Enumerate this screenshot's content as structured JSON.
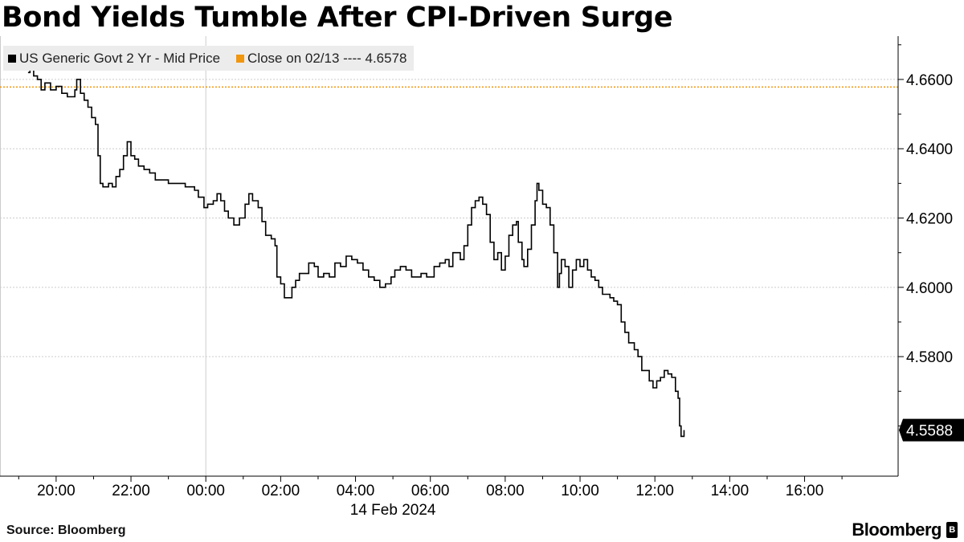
{
  "title": "Bond Yields Tumble After CPI-Driven Surge",
  "legend": {
    "series_label": "US Generic Govt 2 Yr - Mid Price",
    "close_label": "Close on 02/13 ---- 4.6578"
  },
  "source": "Source: Bloomberg",
  "brand": "Bloomberg",
  "colors": {
    "series": "#000000",
    "close_line": "#f0960f",
    "grid": "#cccccc"
  },
  "chart_data": {
    "type": "line",
    "x_axis": {
      "unit": "hours relative to 14 Feb 2024 00:00",
      "range": [
        -5.5,
        18.5
      ],
      "ticks": [
        {
          "value": -4,
          "label": "20:00"
        },
        {
          "value": -2,
          "label": "22:00"
        },
        {
          "value": 0,
          "label": "00:00"
        },
        {
          "value": 2,
          "label": "02:00"
        },
        {
          "value": 4,
          "label": "04:00"
        },
        {
          "value": 6,
          "label": "06:00"
        },
        {
          "value": 8,
          "label": "08:00"
        },
        {
          "value": 10,
          "label": "10:00"
        },
        {
          "value": 12,
          "label": "12:00"
        },
        {
          "value": 14,
          "label": "14:00"
        },
        {
          "value": 16,
          "label": "16:00"
        }
      ],
      "date_label": "14 Feb 2024"
    },
    "y_axis": {
      "range": [
        4.5455,
        4.6725
      ],
      "ticks": [
        4.66,
        4.64,
        4.62,
        4.6,
        4.58
      ],
      "tick_labels": [
        "4.6600",
        "4.6400",
        "4.6200",
        "4.6000",
        "4.5800"
      ],
      "position": "right"
    },
    "reference_line": {
      "value": 4.6578,
      "label": "Close on 02/13"
    },
    "last_value_label": "4.5588",
    "last_value": 4.5588,
    "series": [
      {
        "name": "US Generic Govt 2 Yr - Mid Price",
        "points": [
          [
            -4.75,
            4.662
          ],
          [
            -4.7,
            4.663
          ],
          [
            -4.6,
            4.661
          ],
          [
            -4.5,
            4.66
          ],
          [
            -4.4,
            4.657
          ],
          [
            -4.3,
            4.659
          ],
          [
            -4.15,
            4.657
          ],
          [
            -4.0,
            4.658
          ],
          [
            -3.85,
            4.656
          ],
          [
            -3.7,
            4.655
          ],
          [
            -3.6,
            4.655
          ],
          [
            -3.5,
            4.657
          ],
          [
            -3.45,
            4.66
          ],
          [
            -3.35,
            4.656
          ],
          [
            -3.25,
            4.654
          ],
          [
            -3.15,
            4.652
          ],
          [
            -3.05,
            4.649
          ],
          [
            -2.95,
            4.647
          ],
          [
            -2.88,
            4.638
          ],
          [
            -2.82,
            4.63
          ],
          [
            -2.75,
            4.629
          ],
          [
            -2.6,
            4.63
          ],
          [
            -2.5,
            4.629
          ],
          [
            -2.4,
            4.632
          ],
          [
            -2.3,
            4.634
          ],
          [
            -2.2,
            4.638
          ],
          [
            -2.1,
            4.642
          ],
          [
            -2.0,
            4.638
          ],
          [
            -1.9,
            4.637
          ],
          [
            -1.8,
            4.635
          ],
          [
            -1.65,
            4.634
          ],
          [
            -1.5,
            4.633
          ],
          [
            -1.35,
            4.631
          ],
          [
            -1.2,
            4.631
          ],
          [
            -1.0,
            4.63
          ],
          [
            -0.85,
            4.63
          ],
          [
            -0.7,
            4.63
          ],
          [
            -0.55,
            4.629
          ],
          [
            -0.4,
            4.629
          ],
          [
            -0.3,
            4.628
          ],
          [
            -0.2,
            4.626
          ],
          [
            -0.05,
            4.623
          ],
          [
            0.05,
            4.624
          ],
          [
            0.2,
            4.625
          ],
          [
            0.3,
            4.627
          ],
          [
            0.4,
            4.625
          ],
          [
            0.5,
            4.622
          ],
          [
            0.6,
            4.62
          ],
          [
            0.75,
            4.618
          ],
          [
            0.9,
            4.62
          ],
          [
            1.05,
            4.624
          ],
          [
            1.15,
            4.627
          ],
          [
            1.25,
            4.625
          ],
          [
            1.4,
            4.623
          ],
          [
            1.5,
            4.619
          ],
          [
            1.6,
            4.615
          ],
          [
            1.75,
            4.614
          ],
          [
            1.85,
            4.612
          ],
          [
            1.9,
            4.603
          ],
          [
            2.0,
            4.601
          ],
          [
            2.1,
            4.597
          ],
          [
            2.2,
            4.597
          ],
          [
            2.3,
            4.6
          ],
          [
            2.4,
            4.602
          ],
          [
            2.5,
            4.604
          ],
          [
            2.6,
            4.604
          ],
          [
            2.75,
            4.607
          ],
          [
            2.9,
            4.606
          ],
          [
            3.0,
            4.603
          ],
          [
            3.15,
            4.604
          ],
          [
            3.3,
            4.603
          ],
          [
            3.45,
            4.607
          ],
          [
            3.6,
            4.606
          ],
          [
            3.75,
            4.609
          ],
          [
            3.9,
            4.608
          ],
          [
            4.05,
            4.607
          ],
          [
            4.2,
            4.605
          ],
          [
            4.35,
            4.603
          ],
          [
            4.5,
            4.602
          ],
          [
            4.65,
            4.6
          ],
          [
            4.8,
            4.601
          ],
          [
            4.95,
            4.603
          ],
          [
            5.05,
            4.605
          ],
          [
            5.2,
            4.606
          ],
          [
            5.35,
            4.605
          ],
          [
            5.5,
            4.603
          ],
          [
            5.6,
            4.603
          ],
          [
            5.75,
            4.604
          ],
          [
            5.9,
            4.603
          ],
          [
            6.0,
            4.603
          ],
          [
            6.1,
            4.606
          ],
          [
            6.25,
            4.607
          ],
          [
            6.4,
            4.608
          ],
          [
            6.5,
            4.606
          ],
          [
            6.6,
            4.61
          ],
          [
            6.7,
            4.61
          ],
          [
            6.8,
            4.608
          ],
          [
            6.9,
            4.612
          ],
          [
            7.0,
            4.618
          ],
          [
            7.1,
            4.623
          ],
          [
            7.2,
            4.625
          ],
          [
            7.3,
            4.626
          ],
          [
            7.4,
            4.624
          ],
          [
            7.5,
            4.621
          ],
          [
            7.6,
            4.613
          ],
          [
            7.7,
            4.608
          ],
          [
            7.8,
            4.61
          ],
          [
            7.9,
            4.605
          ],
          [
            8.0,
            4.609
          ],
          [
            8.1,
            4.615
          ],
          [
            8.2,
            4.618
          ],
          [
            8.3,
            4.619
          ],
          [
            8.35,
            4.613
          ],
          [
            8.45,
            4.608
          ],
          [
            8.5,
            4.606
          ],
          [
            8.6,
            4.611
          ],
          [
            8.7,
            4.618
          ],
          [
            8.8,
            4.625
          ],
          [
            8.85,
            4.63
          ],
          [
            8.9,
            4.628
          ],
          [
            9.0,
            4.624
          ],
          [
            9.1,
            4.623
          ],
          [
            9.2,
            4.618
          ],
          [
            9.3,
            4.61
          ],
          [
            9.4,
            4.6
          ],
          [
            9.45,
            4.604
          ],
          [
            9.5,
            4.608
          ],
          [
            9.6,
            4.606
          ],
          [
            9.7,
            4.6
          ],
          [
            9.8,
            4.605
          ],
          [
            9.9,
            4.608
          ],
          [
            10.0,
            4.606
          ],
          [
            10.1,
            4.608
          ],
          [
            10.2,
            4.605
          ],
          [
            10.3,
            4.603
          ],
          [
            10.4,
            4.602
          ],
          [
            10.5,
            4.6
          ],
          [
            10.6,
            4.598
          ],
          [
            10.7,
            4.598
          ],
          [
            10.8,
            4.597
          ],
          [
            10.9,
            4.596
          ],
          [
            11.0,
            4.595
          ],
          [
            11.1,
            4.59
          ],
          [
            11.2,
            4.587
          ],
          [
            11.3,
            4.584
          ],
          [
            11.45,
            4.582
          ],
          [
            11.55,
            4.58
          ],
          [
            11.65,
            4.576
          ],
          [
            11.75,
            4.576
          ],
          [
            11.85,
            4.573
          ],
          [
            11.95,
            4.571
          ],
          [
            12.05,
            4.573
          ],
          [
            12.15,
            4.574
          ],
          [
            12.25,
            4.576
          ],
          [
            12.35,
            4.575
          ],
          [
            12.45,
            4.574
          ],
          [
            12.55,
            4.57
          ],
          [
            12.62,
            4.568
          ],
          [
            12.66,
            4.56
          ],
          [
            12.7,
            4.557
          ],
          [
            12.78,
            4.5588
          ]
        ]
      }
    ]
  }
}
